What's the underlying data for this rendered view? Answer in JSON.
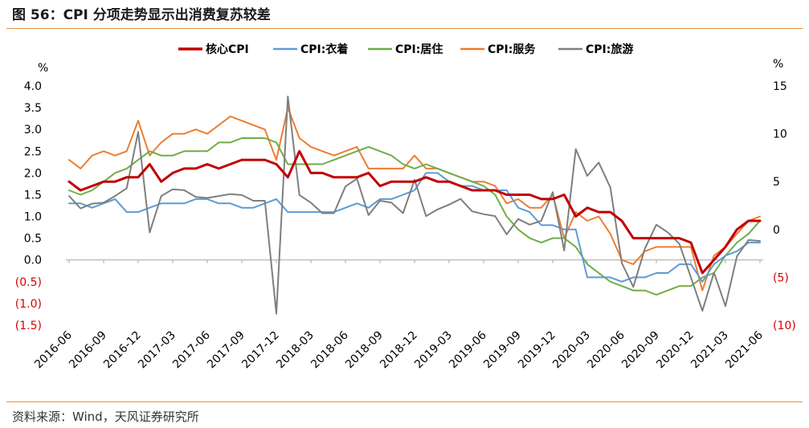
{
  "title": "图 56：CPI 分项走势显示出消费复苏较差",
  "source": "资料来源：Wind，天风证券研究所",
  "chart_data": {
    "type": "line",
    "x_ticks": [
      "2016-06",
      "2016-09",
      "2016-12",
      "2017-03",
      "2017-06",
      "2017-09",
      "2017-12",
      "2018-03",
      "2018-06",
      "2018-09",
      "2018-12",
      "2019-03",
      "2019-06",
      "2019-09",
      "2019-12",
      "2020-03",
      "2020-06",
      "2020-09",
      "2020-12",
      "2021-03",
      "2021-06"
    ],
    "x": [
      "2016-06",
      "2016-07",
      "2016-08",
      "2016-09",
      "2016-10",
      "2016-11",
      "2016-12",
      "2017-01",
      "2017-02",
      "2017-03",
      "2017-04",
      "2017-05",
      "2017-06",
      "2017-07",
      "2017-08",
      "2017-09",
      "2017-10",
      "2017-11",
      "2017-12",
      "2018-01",
      "2018-02",
      "2018-03",
      "2018-04",
      "2018-05",
      "2018-06",
      "2018-07",
      "2018-08",
      "2018-09",
      "2018-10",
      "2018-11",
      "2018-12",
      "2019-01",
      "2019-02",
      "2019-03",
      "2019-04",
      "2019-05",
      "2019-06",
      "2019-07",
      "2019-08",
      "2019-09",
      "2019-10",
      "2019-11",
      "2019-12",
      "2020-01",
      "2020-02",
      "2020-03",
      "2020-04",
      "2020-05",
      "2020-06",
      "2020-07",
      "2020-08",
      "2020-09",
      "2020-10",
      "2020-11",
      "2020-12",
      "2021-01",
      "2021-02",
      "2021-03",
      "2021-04",
      "2021-05",
      "2021-06"
    ],
    "left_axis": {
      "unit": "%",
      "min": -1.5,
      "max": 4.0,
      "ticks": [
        "4.0",
        "3.5",
        "3.0",
        "2.5",
        "2.0",
        "1.5",
        "1.0",
        "0.5",
        "0.0",
        "(0.5)",
        "(1.0)",
        "(1.5)"
      ]
    },
    "right_axis": {
      "unit": "%",
      "min": -10,
      "max": 15,
      "ticks": [
        "15",
        "10",
        "5",
        "0",
        "(5)",
        "(10)"
      ]
    },
    "series": [
      {
        "name": "核心CPI",
        "color": "#c00000",
        "axis": "left",
        "width": 3,
        "values": [
          1.8,
          1.6,
          1.7,
          1.8,
          1.8,
          1.9,
          1.9,
          2.2,
          1.8,
          2.0,
          2.1,
          2.1,
          2.2,
          2.1,
          2.2,
          2.3,
          2.3,
          2.3,
          2.2,
          1.9,
          2.5,
          2.0,
          2.0,
          1.9,
          1.9,
          1.9,
          2.0,
          1.7,
          1.8,
          1.8,
          1.8,
          1.9,
          1.8,
          1.8,
          1.7,
          1.6,
          1.6,
          1.6,
          1.5,
          1.5,
          1.5,
          1.4,
          1.4,
          1.5,
          1.0,
          1.2,
          1.1,
          1.1,
          0.9,
          0.5,
          0.5,
          0.5,
          0.5,
          0.5,
          0.4,
          -0.3,
          0.0,
          0.3,
          0.7,
          0.9,
          0.9
        ]
      },
      {
        "name": "CPI:衣着",
        "color": "#5b9bd5",
        "axis": "left",
        "width": 2,
        "values": [
          1.3,
          1.3,
          1.2,
          1.3,
          1.4,
          1.1,
          1.1,
          1.2,
          1.3,
          1.3,
          1.3,
          1.4,
          1.4,
          1.3,
          1.3,
          1.2,
          1.2,
          1.3,
          1.4,
          1.1,
          1.1,
          1.1,
          1.1,
          1.1,
          1.2,
          1.3,
          1.2,
          1.4,
          1.4,
          1.5,
          1.6,
          2.0,
          2.0,
          1.8,
          1.7,
          1.7,
          1.6,
          1.6,
          1.6,
          1.2,
          1.1,
          0.8,
          0.8,
          0.7,
          0.7,
          -0.4,
          -0.4,
          -0.4,
          -0.5,
          -0.4,
          -0.4,
          -0.3,
          -0.3,
          -0.1,
          -0.1,
          -0.5,
          -0.1,
          0.1,
          0.2,
          0.4,
          0.4
        ]
      },
      {
        "name": "CPI:居住",
        "color": "#70ad47",
        "axis": "left",
        "width": 2,
        "values": [
          1.6,
          1.5,
          1.6,
          1.8,
          2.0,
          2.1,
          2.3,
          2.5,
          2.4,
          2.4,
          2.5,
          2.5,
          2.5,
          2.7,
          2.7,
          2.8,
          2.8,
          2.8,
          2.7,
          2.2,
          2.2,
          2.2,
          2.2,
          2.3,
          2.4,
          2.5,
          2.6,
          2.5,
          2.4,
          2.2,
          2.1,
          2.2,
          2.1,
          2.0,
          1.9,
          1.8,
          1.7,
          1.5,
          1.0,
          0.7,
          0.5,
          0.4,
          0.5,
          0.5,
          0.3,
          -0.1,
          -0.3,
          -0.5,
          -0.6,
          -0.7,
          -0.7,
          -0.8,
          -0.7,
          -0.6,
          -0.6,
          -0.4,
          -0.3,
          0.1,
          0.4,
          0.6,
          0.9
        ]
      },
      {
        "name": "CPI:服务",
        "color": "#ed7d31",
        "axis": "left",
        "width": 2,
        "values": [
          2.3,
          2.1,
          2.4,
          2.5,
          2.4,
          2.5,
          3.2,
          2.4,
          2.7,
          2.9,
          2.9,
          3.0,
          2.9,
          3.1,
          3.3,
          3.2,
          3.1,
          3.0,
          2.3,
          3.5,
          2.8,
          2.6,
          2.5,
          2.4,
          2.5,
          2.6,
          2.1,
          2.1,
          2.1,
          2.1,
          2.4,
          2.1,
          2.1,
          2.0,
          1.9,
          1.8,
          1.8,
          1.7,
          1.3,
          1.4,
          1.2,
          1.2,
          1.5,
          0.5,
          1.1,
          0.9,
          1.0,
          0.6,
          0.0,
          -0.1,
          0.2,
          0.3,
          0.3,
          0.3,
          0.3,
          -0.7,
          0.1,
          0.3,
          0.6,
          0.9,
          1.0
        ]
      },
      {
        "name": "CPI:旅游",
        "color": "#7f7f7f",
        "axis": "right",
        "width": 2,
        "values": [
          3.5,
          2.2,
          2.7,
          2.8,
          3.5,
          4.3,
          10.2,
          -0.3,
          3.5,
          4.2,
          4.1,
          3.4,
          3.3,
          3.5,
          3.7,
          3.6,
          3.0,
          3.0,
          -8.8,
          13.9,
          3.6,
          2.8,
          1.7,
          1.7,
          4.5,
          5.3,
          1.5,
          3.0,
          2.8,
          1.7,
          5.2,
          1.4,
          2.1,
          2.6,
          3.2,
          1.9,
          1.6,
          1.4,
          -0.5,
          1.1,
          0.5,
          0.9,
          3.9,
          -2.2,
          8.4,
          5.6,
          7.0,
          4.4,
          -3.5,
          -6.0,
          -2.0,
          0.5,
          -0.3,
          -1.5,
          -5.0,
          -8.5,
          -4.5,
          -8.0,
          -2.8,
          -1.1,
          -1.2
        ]
      }
    ]
  }
}
